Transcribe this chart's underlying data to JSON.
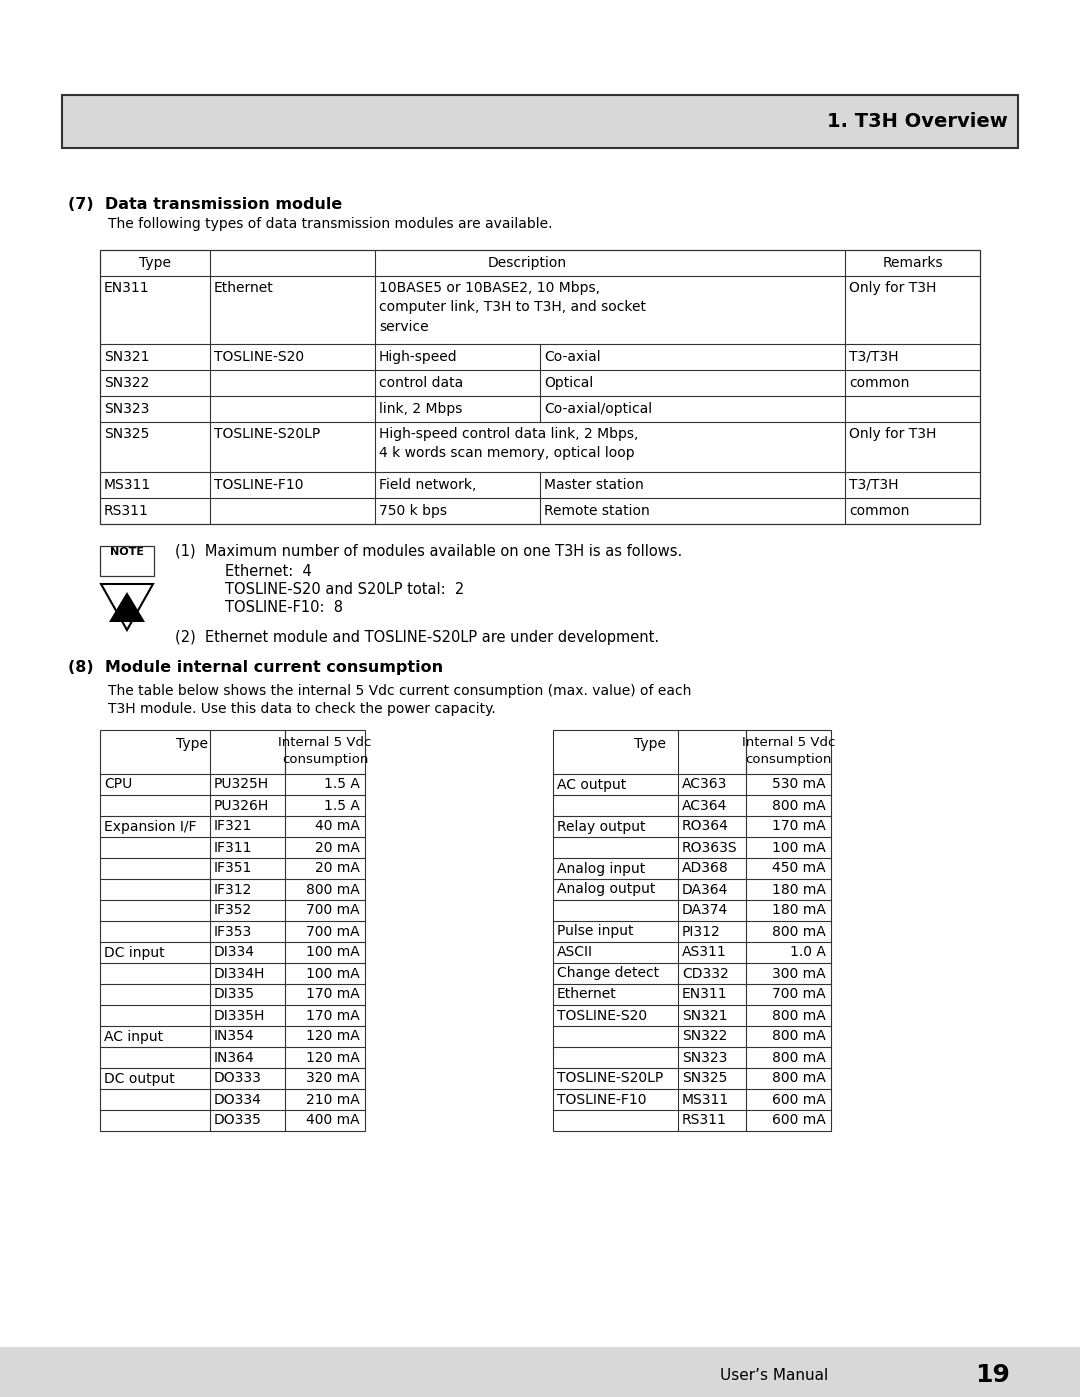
{
  "page_bg": "#ffffff",
  "header_bg": "#d8d8d8",
  "header_text": "1. T3H Overview",
  "footer_text": "User’s Manual",
  "footer_page": "19",
  "section7_title": "(7)  Data transmission module",
  "section7_intro": "The following types of data transmission modules are available.",
  "note_text1": "(1)  Maximum number of modules available on one T3H is as follows.",
  "note_indent1": "Ethernet:  4",
  "note_indent2": "TOSLINE-S20 and S20LP total:  2",
  "note_indent3": "TOSLINE-F10:  8",
  "note_text2": "(2)  Ethernet module and TOSLINE-S20LP are under development.",
  "section8_title": "(8)  Module internal current consumption",
  "section8_intro1": "The table below shows the internal 5 Vdc current consumption (max. value) of each",
  "section8_intro2": "T3H module. Use this data to check the power capacity.",
  "table2_left": [
    [
      "CPU",
      "PU325H",
      "1.5 A"
    ],
    [
      "",
      "PU326H",
      "1.5 A"
    ],
    [
      "Expansion I/F",
      "IF321",
      "40 mA"
    ],
    [
      "",
      "IF311",
      "20 mA"
    ],
    [
      "",
      "IF351",
      "20 mA"
    ],
    [
      "",
      "IF312",
      "800 mA"
    ],
    [
      "",
      "IF352",
      "700 mA"
    ],
    [
      "",
      "IF353",
      "700 mA"
    ],
    [
      "DC input",
      "DI334",
      "100 mA"
    ],
    [
      "",
      "DI334H",
      "100 mA"
    ],
    [
      "",
      "DI335",
      "170 mA"
    ],
    [
      "",
      "DI335H",
      "170 mA"
    ],
    [
      "AC input",
      "IN354",
      "120 mA"
    ],
    [
      "",
      "IN364",
      "120 mA"
    ],
    [
      "DC output",
      "DO333",
      "320 mA"
    ],
    [
      "",
      "DO334",
      "210 mA"
    ],
    [
      "",
      "DO335",
      "400 mA"
    ]
  ],
  "table2_right": [
    [
      "AC output",
      "AC363",
      "530 mA"
    ],
    [
      "",
      "AC364",
      "800 mA"
    ],
    [
      "Relay output",
      "RO364",
      "170 mA"
    ],
    [
      "",
      "RO363S",
      "100 mA"
    ],
    [
      "Analog input",
      "AD368",
      "450 mA"
    ],
    [
      "Analog output",
      "DA364",
      "180 mA"
    ],
    [
      "",
      "DA374",
      "180 mA"
    ],
    [
      "Pulse input",
      "PI312",
      "800 mA"
    ],
    [
      "ASCII",
      "AS311",
      "1.0 A"
    ],
    [
      "Change detect",
      "CD332",
      "300 mA"
    ],
    [
      "Ethernet",
      "EN311",
      "700 mA"
    ],
    [
      "TOSLINE-S20",
      "SN321",
      "800 mA"
    ],
    [
      "",
      "SN322",
      "800 mA"
    ],
    [
      "",
      "SN323",
      "800 mA"
    ],
    [
      "TOSLINE-S20LP",
      "SN325",
      "800 mA"
    ],
    [
      "TOSLINE-F10",
      "MS311",
      "600 mA"
    ],
    [
      "",
      "RS311",
      "600 mA"
    ]
  ]
}
